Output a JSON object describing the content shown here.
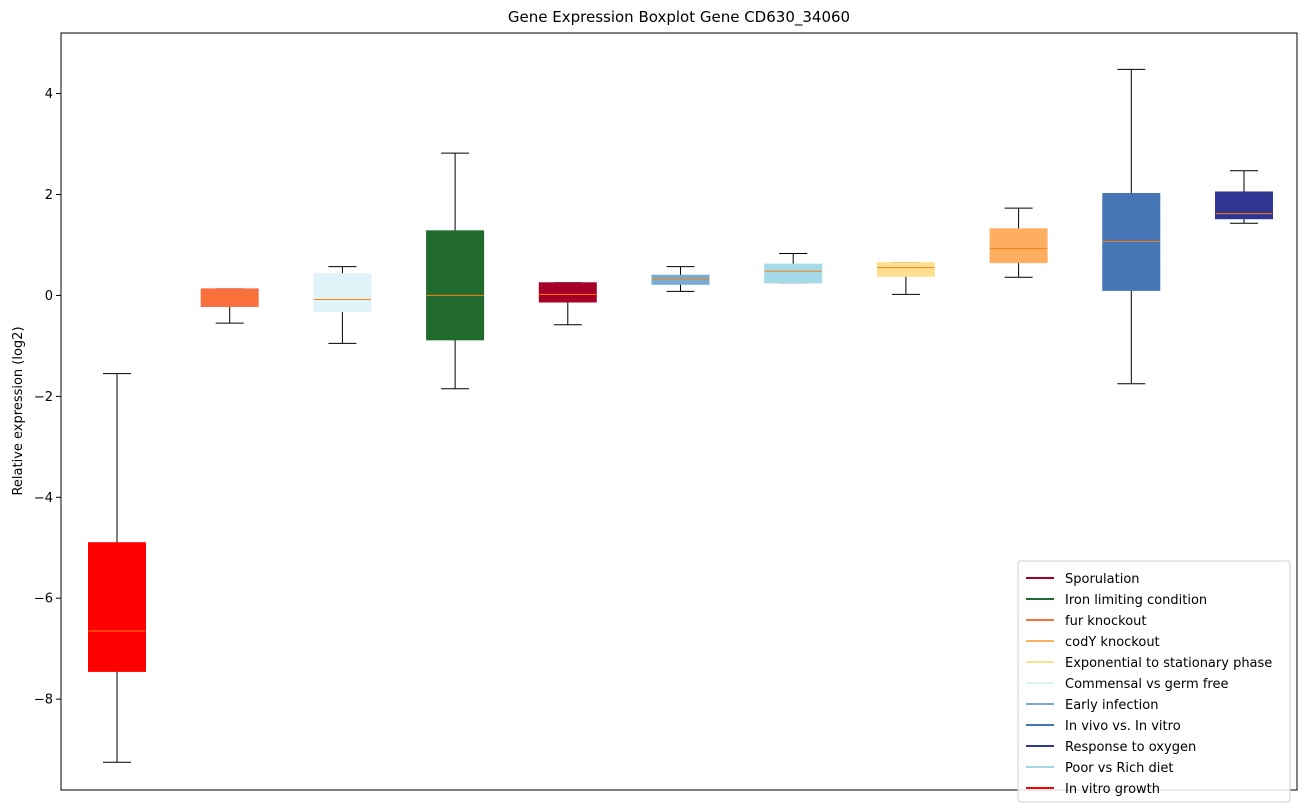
{
  "chart_data": {
    "type": "boxplot",
    "title": "Gene Expression Boxplot Gene CD630_34060",
    "xlabel": "",
    "ylabel": "Relative expression (log2)",
    "ylim": [
      -9.8,
      5.2
    ],
    "yticks": [
      -8,
      -6,
      -4,
      -2,
      0,
      2,
      4
    ],
    "ytick_labels": [
      "−8",
      "−6",
      "−4",
      "−2",
      "0",
      "2",
      "4"
    ],
    "median_color": "#ff7f0e",
    "whisker_color": "#000000",
    "boxes": [
      {
        "group": "In vitro growth",
        "color": "#ff0000",
        "whisker_low": -9.25,
        "q1": -7.45,
        "median": -6.65,
        "q3": -4.9,
        "whisker_high": -1.55
      },
      {
        "group": "fur knockout",
        "color": "#f87040",
        "whisker_low": -0.55,
        "q1": -0.22,
        "median": -0.05,
        "q3": 0.13,
        "whisker_high": 0.13
      },
      {
        "group": "Commensal vs germ free",
        "color": "#dff3f8",
        "whisker_low": -0.95,
        "q1": -0.32,
        "median": -0.08,
        "q3": 0.43,
        "whisker_high": 0.57
      },
      {
        "group": "Iron limiting condition",
        "color": "#226b2e",
        "whisker_low": -1.85,
        "q1": -0.88,
        "median": 0.0,
        "q3": 1.28,
        "whisker_high": 2.82
      },
      {
        "group": "Sporulation",
        "color": "#a50026",
        "whisker_low": -0.58,
        "q1": -0.13,
        "median": 0.02,
        "q3": 0.25,
        "whisker_high": 0.25
      },
      {
        "group": "Early infection",
        "color": "#74add1",
        "whisker_low": 0.08,
        "q1": 0.22,
        "median": 0.33,
        "q3": 0.4,
        "whisker_high": 0.57
      },
      {
        "group": "Poor vs Rich diet",
        "color": "#a6d9e8",
        "whisker_low": 0.25,
        "q1": 0.25,
        "median": 0.48,
        "q3": 0.62,
        "whisker_high": 0.83
      },
      {
        "group": "Exponential to stationary phase",
        "color": "#fee090",
        "whisker_low": 0.02,
        "q1": 0.38,
        "median": 0.55,
        "q3": 0.65,
        "whisker_high": 0.65
      },
      {
        "group": "codY knockout",
        "color": "#fdae61",
        "whisker_low": 0.36,
        "q1": 0.65,
        "median": 0.93,
        "q3": 1.32,
        "whisker_high": 1.73
      },
      {
        "group": "In vivo vs. In vitro",
        "color": "#4575b4",
        "whisker_low": -1.75,
        "q1": 0.1,
        "median": 1.07,
        "q3": 2.02,
        "whisker_high": 4.48
      },
      {
        "group": "Response to oxygen",
        "color": "#313695",
        "whisker_low": 1.43,
        "q1": 1.52,
        "median": 1.62,
        "q3": 2.05,
        "whisker_high": 2.47
      }
    ],
    "legend": {
      "placement": "lower-right",
      "entries": [
        {
          "label": "Sporulation",
          "color": "#a50026"
        },
        {
          "label": "Iron limiting condition",
          "color": "#226b2e"
        },
        {
          "label": "fur knockout",
          "color": "#f87040"
        },
        {
          "label": "codY knockout",
          "color": "#fdae61"
        },
        {
          "label": "Exponential to stationary phase",
          "color": "#fee090"
        },
        {
          "label": "Commensal vs germ free",
          "color": "#dff3f8"
        },
        {
          "label": "Early infection",
          "color": "#74add1"
        },
        {
          "label": "In vivo vs. In vitro",
          "color": "#4575b4"
        },
        {
          "label": "Response to oxygen",
          "color": "#313695"
        },
        {
          "label": "Poor vs Rich diet",
          "color": "#a6d9e8"
        },
        {
          "label": "In vitro growth",
          "color": "#ff0000"
        }
      ]
    }
  }
}
